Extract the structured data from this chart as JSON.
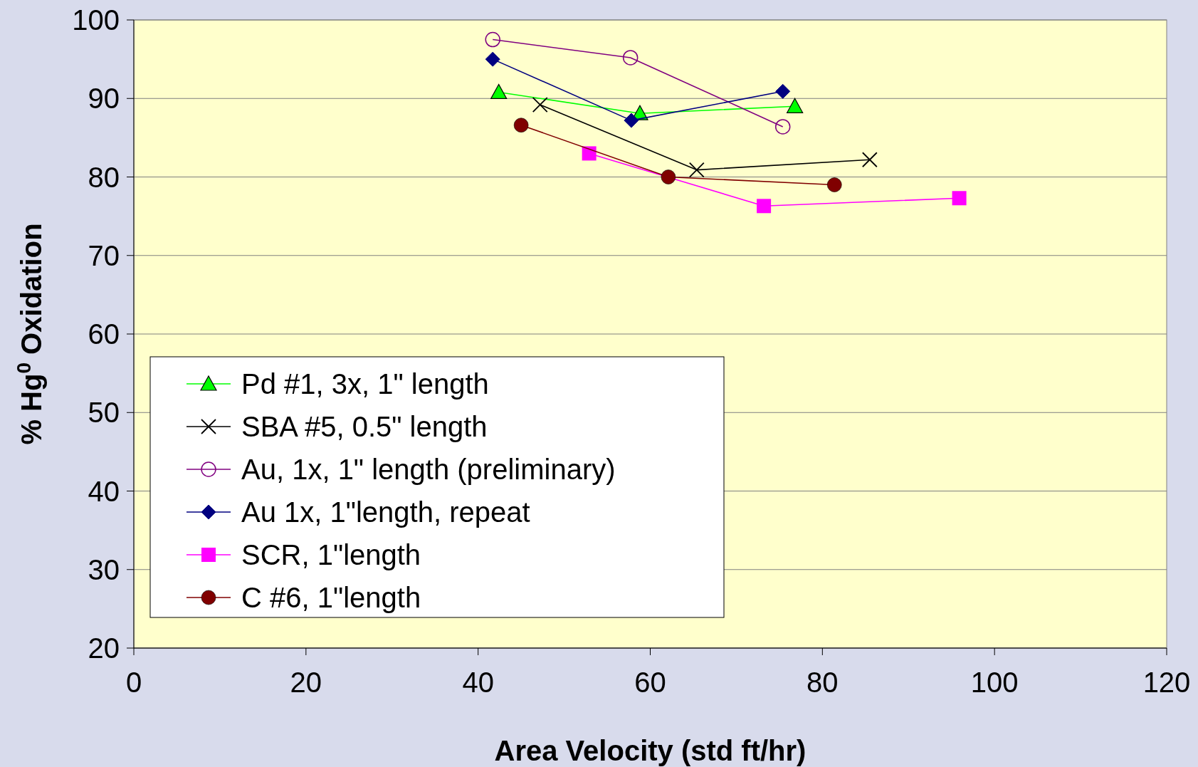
{
  "chart_data": {
    "type": "line",
    "xlabel": "Area Velocity (std ft/hr)",
    "ylabel": "% Hg$^{0}$ Oxidation",
    "xlim": [
      0,
      120
    ],
    "xticks": [
      0,
      20,
      40,
      60,
      80,
      100,
      120
    ],
    "ylim": [
      20,
      100
    ],
    "yticks": [
      20,
      30,
      40,
      50,
      60,
      70,
      80,
      90,
      100
    ],
    "grid": "y",
    "legend": "bottom left",
    "series": [
      {
        "name": "Pd #1, 3x, 1\" length",
        "color": "#00ff00",
        "marker": "triangle",
        "x": [
          42.4,
          58.8,
          76.8
        ],
        "values": [
          90.8,
          88.1,
          89.0
        ]
      },
      {
        "name": "SBA #5, 0.5\" length",
        "color": "#000000",
        "marker": "cross",
        "x": [
          47.2,
          65.4,
          85.5
        ],
        "values": [
          89.2,
          80.9,
          82.2
        ]
      },
      {
        "name": "Au, 1x, 1\" length (preliminary)",
        "color": "#800080",
        "marker": "circle-open",
        "x": [
          41.7,
          57.7,
          75.4
        ],
        "values": [
          97.5,
          95.2,
          86.4
        ]
      },
      {
        "name": "Au 1x, 1\"length, repeat",
        "color": "#000080",
        "marker": "diamond",
        "x": [
          41.7,
          57.8,
          75.4
        ],
        "values": [
          95.0,
          87.2,
          90.9
        ]
      },
      {
        "name": "SCR, 1\"length",
        "color": "#ff00ff",
        "marker": "square",
        "x": [
          52.9,
          73.2,
          95.9
        ],
        "values": [
          83.0,
          76.3,
          77.3
        ]
      },
      {
        "name": "C #6, 1\"length",
        "color": "#800000",
        "marker": "circle",
        "x": [
          45.0,
          62.1,
          81.4
        ],
        "values": [
          86.6,
          80.0,
          79.0
        ]
      }
    ]
  }
}
